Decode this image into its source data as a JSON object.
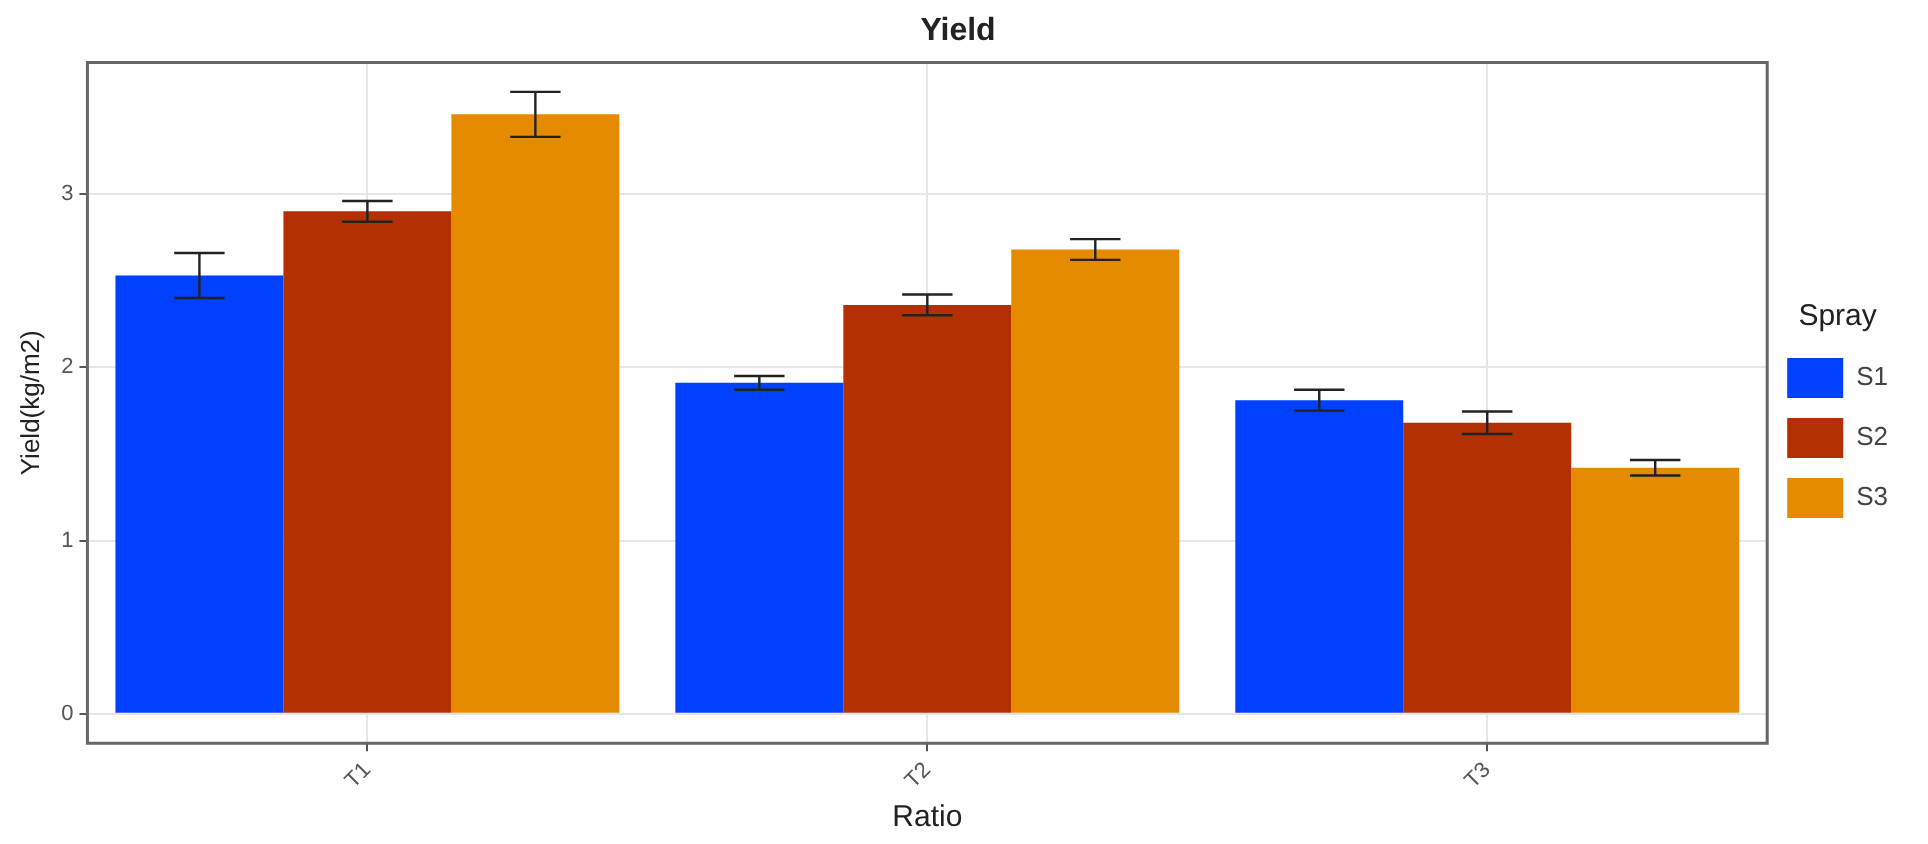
{
  "chart_data": {
    "type": "bar",
    "title": "Yield",
    "xlabel": "Ratio",
    "ylabel": "Yield(kg/m2)",
    "legend_title": "Spray",
    "categories": [
      "T1",
      "T2",
      "T3"
    ],
    "series": [
      {
        "name": "S1",
        "color": "#0040ff",
        "values": [
          2.53,
          1.91,
          1.81
        ],
        "errors": [
          0.13,
          0.04,
          0.06
        ]
      },
      {
        "name": "S2",
        "color": "#b33000",
        "values": [
          2.9,
          2.36,
          1.68
        ],
        "errors": [
          0.06,
          0.06,
          0.065
        ]
      },
      {
        "name": "S3",
        "color": "#e68a00",
        "values": [
          3.46,
          2.68,
          1.42
        ],
        "errors": [
          0.13,
          0.06,
          0.045
        ]
      }
    ],
    "ylim": [
      -0.17,
      3.76
    ],
    "yticks": [
      0,
      1,
      2,
      3
    ],
    "grid": true,
    "legend": "right"
  }
}
